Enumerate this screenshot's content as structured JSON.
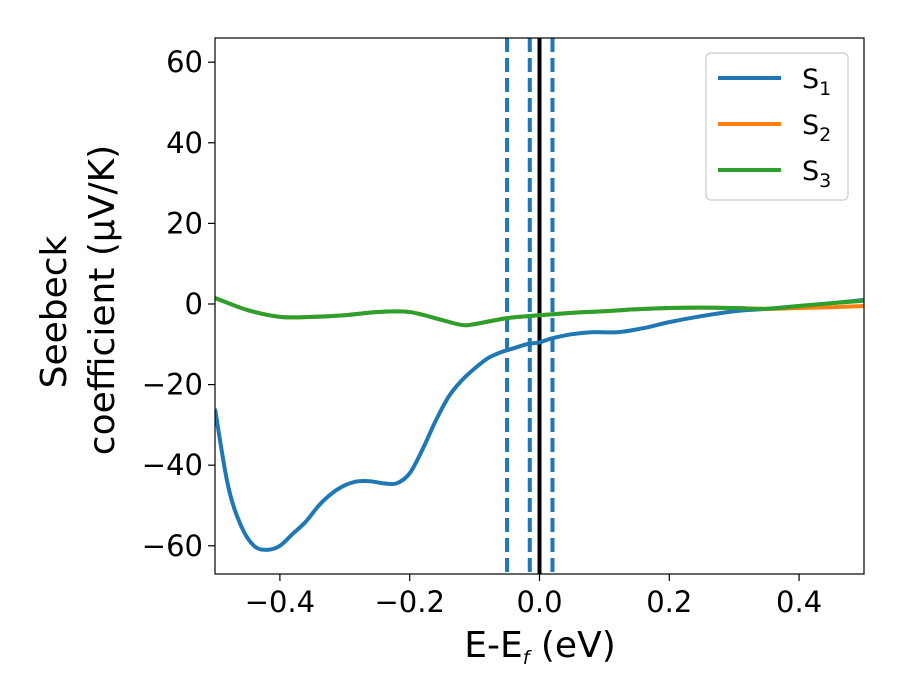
{
  "chart_data": {
    "type": "line",
    "xlabel_main": "E-E",
    "xlabel_sub": "f",
    "xlabel_unit": " (eV)",
    "ylabel_line1": "Seebeck",
    "ylabel_line2": "coefficient  (μV/K)",
    "xlim": [
      -0.5,
      0.5
    ],
    "ylim": [
      -67,
      66
    ],
    "xticks": [
      -0.4,
      -0.2,
      0.0,
      0.2,
      0.4
    ],
    "xtick_labels": [
      "−0.4",
      "−0.2",
      "0.0",
      "0.2",
      "0.4"
    ],
    "yticks": [
      -60,
      -40,
      -20,
      0,
      20,
      40,
      60
    ],
    "ytick_labels": [
      "−60",
      "−40",
      "−20",
      "0",
      "20",
      "40",
      "60"
    ],
    "grid": false,
    "legend_position": "top-right",
    "vlines": [
      {
        "x": -0.05,
        "color": "#1f77b4",
        "style": "dashed"
      },
      {
        "x": -0.015,
        "color": "#1f77b4",
        "style": "dashed"
      },
      {
        "x": 0.0,
        "color": "#000000",
        "style": "solid"
      },
      {
        "x": 0.02,
        "color": "#1f77b4",
        "style": "dashed"
      }
    ],
    "series": [
      {
        "name": "S",
        "sub": "1",
        "color": "#1f77b4",
        "x": [
          -0.5,
          -0.48,
          -0.46,
          -0.44,
          -0.42,
          -0.4,
          -0.38,
          -0.36,
          -0.34,
          -0.32,
          -0.3,
          -0.28,
          -0.26,
          -0.24,
          -0.22,
          -0.2,
          -0.18,
          -0.16,
          -0.14,
          -0.12,
          -0.1,
          -0.08,
          -0.06,
          -0.04,
          -0.02,
          0.0,
          0.02,
          0.05,
          0.08,
          0.12,
          0.16,
          0.2,
          0.25,
          0.3,
          0.35,
          0.4,
          0.45,
          0.5
        ],
        "y": [
          -26,
          -45,
          -55,
          -60,
          -61,
          -60,
          -57,
          -54,
          -50,
          -47,
          -45,
          -44,
          -44,
          -44.5,
          -44.5,
          -42,
          -36,
          -29,
          -23,
          -19,
          -16,
          -13.5,
          -12,
          -11,
          -10,
          -9.5,
          -8.5,
          -7.5,
          -7,
          -7,
          -6,
          -4.5,
          -3,
          -1.8,
          -1.2,
          -0.5,
          0.2,
          1.0
        ]
      },
      {
        "name": "S",
        "sub": "2",
        "color": "#ff7f0e",
        "x": [
          -0.5,
          -0.45,
          -0.4,
          -0.35,
          -0.3,
          -0.25,
          -0.2,
          -0.15,
          -0.12,
          -0.1,
          -0.05,
          0.0,
          0.05,
          0.1,
          0.15,
          0.2,
          0.25,
          0.3,
          0.35,
          0.4,
          0.45,
          0.5
        ],
        "y": [
          1.5,
          -1.5,
          -3.2,
          -3.2,
          -2.8,
          -2,
          -2,
          -4,
          -5.2,
          -5,
          -3.5,
          -2.8,
          -2.2,
          -1.8,
          -1.3,
          -1,
          -0.9,
          -1,
          -1.2,
          -1,
          -0.8,
          -0.5
        ]
      },
      {
        "name": "S",
        "sub": "3",
        "color": "#2ca02c",
        "x": [
          -0.5,
          -0.45,
          -0.4,
          -0.35,
          -0.3,
          -0.25,
          -0.2,
          -0.15,
          -0.12,
          -0.1,
          -0.05,
          0.0,
          0.05,
          0.1,
          0.15,
          0.2,
          0.25,
          0.3,
          0.35,
          0.4,
          0.45,
          0.5
        ],
        "y": [
          1.5,
          -1.5,
          -3.2,
          -3.2,
          -2.8,
          -2,
          -2,
          -4,
          -5.2,
          -5,
          -3.5,
          -2.8,
          -2.2,
          -1.8,
          -1.3,
          -1,
          -0.9,
          -1,
          -1.2,
          -0.5,
          0.2,
          0.8
        ]
      }
    ]
  }
}
